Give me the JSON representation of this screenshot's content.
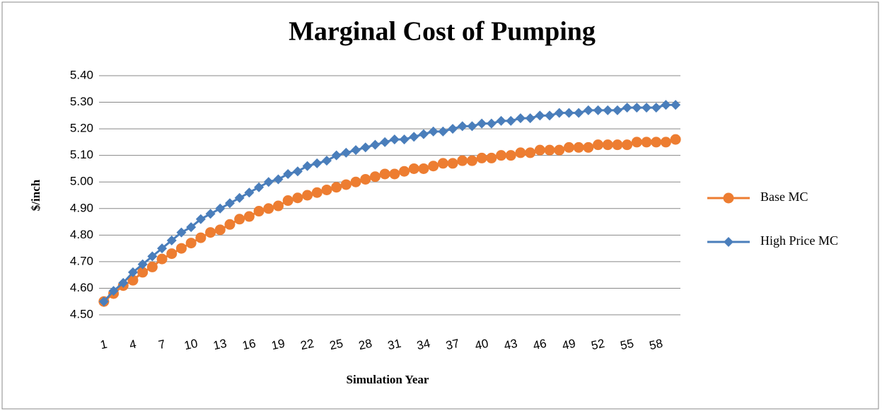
{
  "chart_data": {
    "type": "line",
    "title": "Marginal Cost of Pumping",
    "x_label": "Simulation Year",
    "y_label": "$/inch",
    "categories": [
      1,
      null,
      null,
      4,
      null,
      null,
      7,
      null,
      null,
      10,
      null,
      null,
      13,
      null,
      null,
      16,
      null,
      null,
      19,
      null,
      null,
      22,
      null,
      null,
      25,
      null,
      null,
      28,
      null,
      null,
      31,
      null,
      null,
      34,
      null,
      null,
      37,
      null,
      null,
      40,
      null,
      null,
      43,
      null,
      null,
      46,
      null,
      null,
      49,
      null,
      null,
      52,
      null,
      null,
      55,
      null,
      null,
      58,
      null,
      null
    ],
    "series": [
      {
        "name": "Base MC",
        "color": "#ed7d31",
        "marker": "circle",
        "values": [
          4.55,
          4.58,
          4.61,
          4.63,
          4.66,
          4.68,
          4.71,
          4.73,
          4.75,
          4.77,
          4.79,
          4.81,
          4.82,
          4.84,
          4.86,
          4.87,
          4.89,
          4.9,
          4.91,
          4.93,
          4.94,
          4.95,
          4.96,
          4.97,
          4.98,
          4.99,
          5.0,
          5.01,
          5.02,
          5.03,
          5.03,
          5.04,
          5.05,
          5.05,
          5.06,
          5.07,
          5.07,
          5.08,
          5.08,
          5.09,
          5.09,
          5.1,
          5.1,
          5.11,
          5.11,
          5.12,
          5.12,
          5.12,
          5.13,
          5.13,
          5.13,
          5.14,
          5.14,
          5.14,
          5.14,
          5.15,
          5.15,
          5.15,
          5.15,
          5.16
        ]
      },
      {
        "name": "High Price  MC",
        "color": "#4a7ebb",
        "marker": "diamond",
        "values": [
          4.55,
          4.59,
          4.62,
          4.66,
          4.69,
          4.72,
          4.75,
          4.78,
          4.81,
          4.83,
          4.86,
          4.88,
          4.9,
          4.92,
          4.94,
          4.96,
          4.98,
          5.0,
          5.01,
          5.03,
          5.04,
          5.06,
          5.07,
          5.08,
          5.1,
          5.11,
          5.12,
          5.13,
          5.14,
          5.15,
          5.16,
          5.16,
          5.17,
          5.18,
          5.19,
          5.19,
          5.2,
          5.21,
          5.21,
          5.22,
          5.22,
          5.23,
          5.23,
          5.24,
          5.24,
          5.25,
          5.25,
          5.26,
          5.26,
          5.26,
          5.27,
          5.27,
          5.27,
          5.27,
          5.28,
          5.28,
          5.28,
          5.28,
          5.29,
          5.29
        ]
      }
    ],
    "ylim": [
      4.5,
      5.4
    ],
    "yticks": [
      {
        "value": 4.5,
        "label": "4.50"
      },
      {
        "value": 4.6,
        "label": "4.60"
      },
      {
        "value": 4.7,
        "label": "4.70"
      },
      {
        "value": 4.8,
        "label": "4.80"
      },
      {
        "value": 4.9,
        "label": "4.90"
      },
      {
        "value": 5.0,
        "label": "5.00"
      },
      {
        "value": 5.1,
        "label": "5.10"
      },
      {
        "value": 5.2,
        "label": "5.20"
      },
      {
        "value": 5.3,
        "label": "5.30"
      },
      {
        "value": 5.4,
        "label": "5.40"
      }
    ],
    "grid": true,
    "legend": "right"
  }
}
